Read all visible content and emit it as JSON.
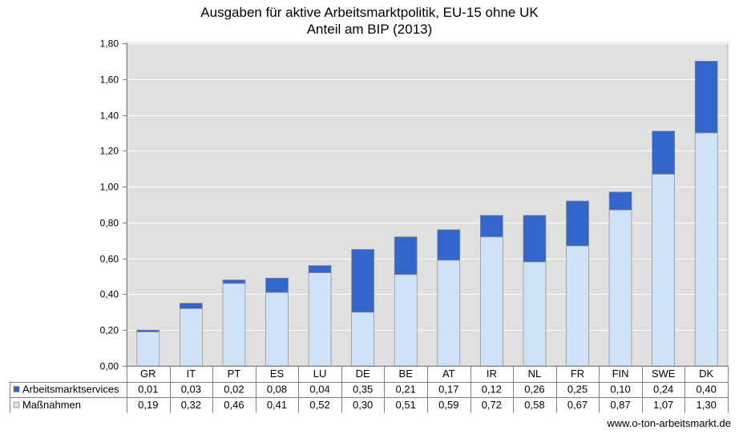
{
  "chart_data": {
    "type": "bar",
    "stacked": true,
    "title": "Ausgaben für aktive Arbeitsmarktpolitik, EU-15 ohne UK",
    "subtitle": "Anteil am BIP (2013)",
    "categories": [
      "GR",
      "IT",
      "PT",
      "ES",
      "LU",
      "DE",
      "BE",
      "AT",
      "IR",
      "NL",
      "FR",
      "FIN",
      "SWE",
      "DK"
    ],
    "series": [
      {
        "name": "Maßnahmen",
        "color": "#cfe2f7",
        "values": [
          0.19,
          0.32,
          0.46,
          0.41,
          0.52,
          0.3,
          0.51,
          0.59,
          0.72,
          0.58,
          0.67,
          0.87,
          1.07,
          1.3
        ],
        "labels": [
          "0,19",
          "0,32",
          "0,46",
          "0,41",
          "0,52",
          "0,30",
          "0,51",
          "0,59",
          "0,72",
          "0,58",
          "0,67",
          "0,87",
          "1,07",
          "1,30"
        ]
      },
      {
        "name": "Arbeitsmarktservices",
        "color": "#3366cc",
        "values": [
          0.01,
          0.03,
          0.02,
          0.08,
          0.04,
          0.35,
          0.21,
          0.17,
          0.12,
          0.26,
          0.25,
          0.1,
          0.24,
          0.4
        ],
        "labels": [
          "0,01",
          "0,03",
          "0,02",
          "0,08",
          "0,04",
          "0,35",
          "0,21",
          "0,17",
          "0,12",
          "0,26",
          "0,25",
          "0,10",
          "0,24",
          "0,40"
        ]
      }
    ],
    "table_row_order": [
      "Arbeitsmarktservices",
      "Maßnahmen"
    ],
    "ylim": [
      0,
      1.8
    ],
    "yticks": [
      0,
      0.2,
      0.4,
      0.6,
      0.8,
      1.0,
      1.2,
      1.4,
      1.6,
      1.8
    ],
    "ytick_labels": [
      "0,00",
      "0,20",
      "0,40",
      "0,60",
      "0,80",
      "1,00",
      "1,20",
      "1,40",
      "1,60",
      "1,80"
    ],
    "grid": true,
    "data_table": true,
    "plot_background": "#e0e0e0"
  },
  "source": "www.o-ton-arbeitsmarkt.de"
}
